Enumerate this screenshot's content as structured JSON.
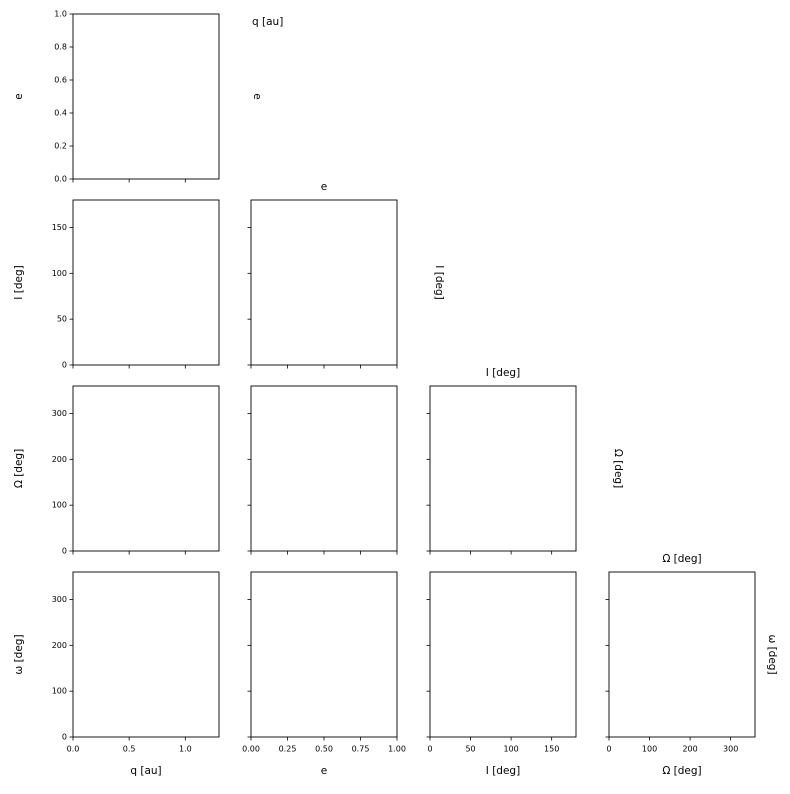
{
  "chart_data": {
    "type": "corner",
    "variables": [
      {
        "label": "q [au]",
        "xlim": [
          0,
          1.3
        ],
        "xticks": [
          {
            "value": 0,
            "label": "0.0"
          },
          0.5,
          {
            "value": 1,
            "label": "1.0"
          }
        ]
      },
      {
        "label": "e",
        "xlim": [
          0,
          1
        ],
        "xticks": [
          {
            "value": 0,
            "label": "0.00"
          },
          0.25,
          {
            "value": 0.5,
            "label": "0.50"
          },
          0.75,
          {
            "value": 1,
            "label": "1.00"
          }
        ],
        "ylim": [
          0,
          1
        ],
        "yticks": [
          {
            "value": 0,
            "label": "0.0"
          },
          0.2,
          0.4,
          0.6,
          0.8,
          {
            "value": 1,
            "label": "1.0"
          }
        ]
      },
      {
        "label": "I [deg]",
        "xlim": [
          0,
          180
        ],
        "xticks": [
          0,
          50,
          100,
          150
        ],
        "ylim": [
          0,
          180
        ],
        "yticks": [
          0,
          50,
          100,
          150
        ]
      },
      {
        "label": "Ω [deg]",
        "xlim": [
          0,
          360
        ],
        "xticks": [
          0,
          100,
          200,
          300
        ],
        "ylim": [
          0,
          360
        ],
        "yticks": [
          0,
          100,
          200,
          300
        ]
      },
      {
        "label": "ω [deg]",
        "ylim": [
          0,
          360
        ],
        "yticks": [
          0,
          100,
          200,
          300
        ]
      }
    ]
  }
}
